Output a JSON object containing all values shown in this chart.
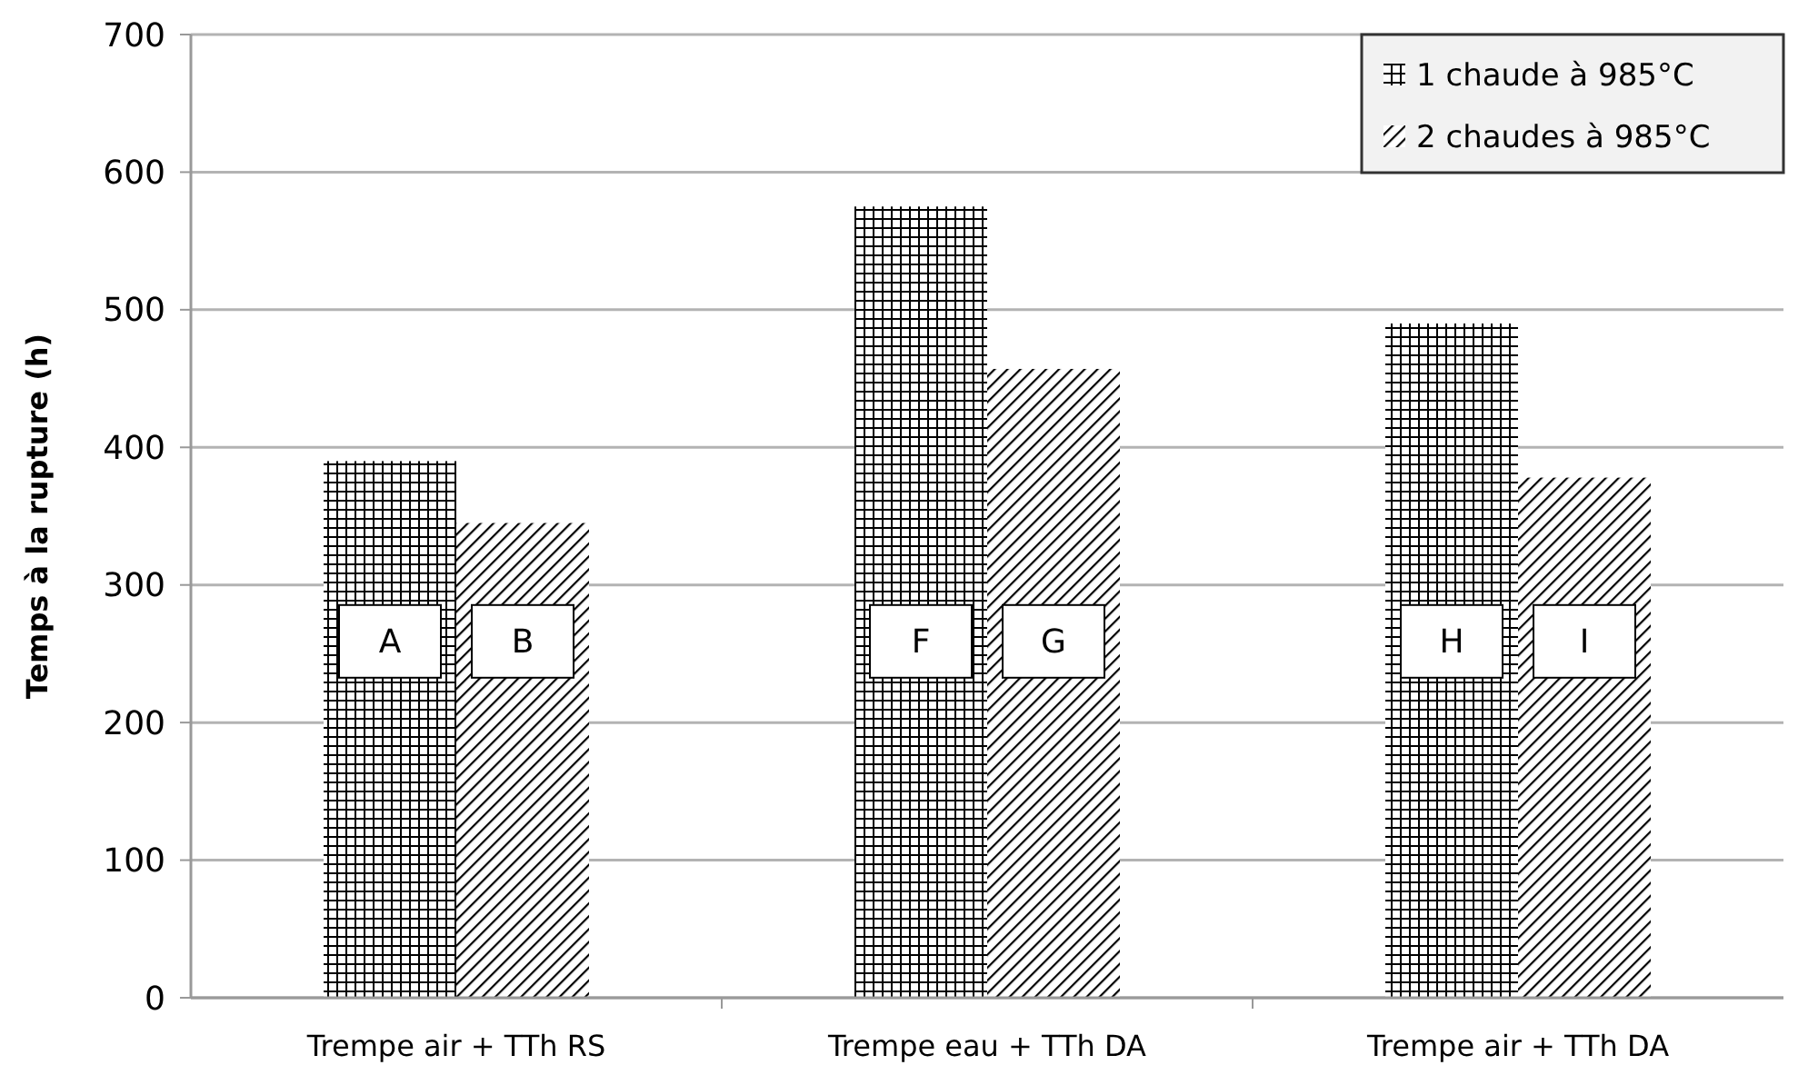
{
  "chart_data": {
    "type": "bar",
    "ylabel": "Temps à la rupture (h)",
    "categories": [
      "Trempe air + TTh RS",
      "Trempe eau + TTh DA",
      "Trempe air + TTh DA"
    ],
    "series": [
      {
        "name": "1 chaude à 985°C",
        "color": "#000000",
        "values": [
          390,
          575,
          490
        ],
        "value_labels": [
          "A",
          "F",
          "H"
        ]
      },
      {
        "name": "2 chaudes à 985°C",
        "color": "#000000",
        "values": [
          345,
          457,
          378
        ],
        "value_labels": [
          "B",
          "G",
          "I"
        ]
      }
    ],
    "ylim": [
      0,
      700
    ],
    "yticks": [
      0,
      100,
      200,
      300,
      400,
      500,
      600,
      700
    ],
    "grid": "y",
    "legend": "top right"
  }
}
